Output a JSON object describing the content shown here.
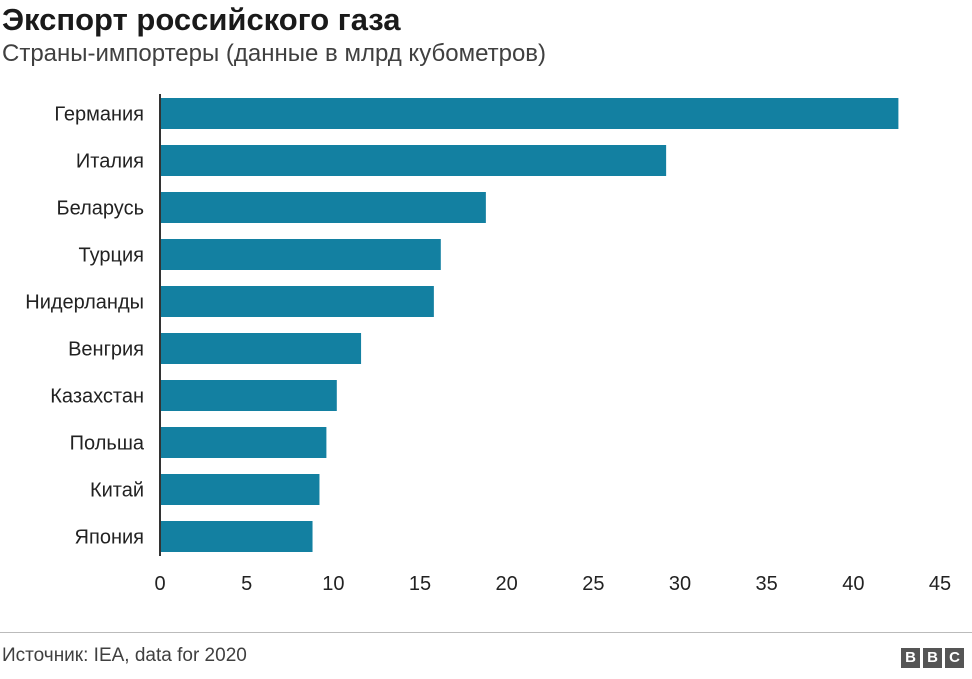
{
  "header": {
    "title": "Экспорт российского газа",
    "subtitle": "Страны-импортеры (данные в млрд кубометров)"
  },
  "footer": {
    "source": "Источник: IEA, data for 2020",
    "logo_letters": [
      "B",
      "B",
      "C"
    ]
  },
  "colors": {
    "bar": "#1380A1",
    "axis": "#333333",
    "logo": "#555555"
  },
  "chart_data": {
    "type": "bar",
    "orientation": "horizontal",
    "title": "Экспорт российского газа",
    "subtitle": "Страны-импортеры (данные в млрд кубометров)",
    "categories": [
      "Германия",
      "Италия",
      "Беларусь",
      "Турция",
      "Нидерланды",
      "Венгрия",
      "Казахстан",
      "Польша",
      "Китай",
      "Япония"
    ],
    "values": [
      42.6,
      29.2,
      18.8,
      16.2,
      15.8,
      11.6,
      10.2,
      9.6,
      9.2,
      8.8
    ],
    "xlim": [
      0,
      45
    ],
    "x_ticks": [
      "0",
      "5",
      "10",
      "15",
      "20",
      "25",
      "30",
      "35",
      "40",
      "45"
    ],
    "grid": false,
    "legend": "none"
  }
}
